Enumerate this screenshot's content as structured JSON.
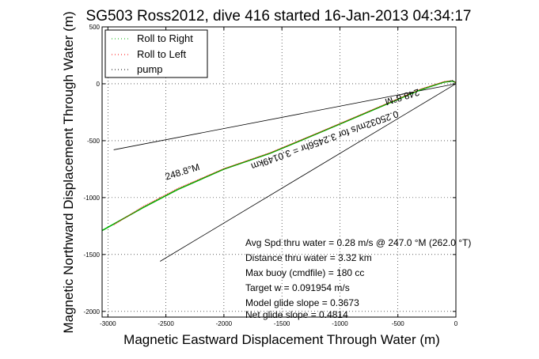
{
  "chart_data": {
    "type": "line",
    "title": "SG503 Ross2012, dive 416 started 16-Jan-2013 04:34:17",
    "xlabel": "Magnetic Eastward Displacement Through Water (m)",
    "ylabel": "Magnetic Northward Displacement Through Water (m)",
    "xlim": [
      -3050,
      0
    ],
    "ylim": [
      -2050,
      500
    ],
    "xticks": [
      -3000,
      -2500,
      -2000,
      -1500,
      -1000,
      -500,
      0
    ],
    "yticks": [
      500,
      0,
      -500,
      -1000,
      -1500,
      -2000
    ],
    "grid": true,
    "legend_position": "top-left",
    "legend": [
      {
        "label": "Roll to Right",
        "color": "#00b000"
      },
      {
        "label": "Roll to Left",
        "color": "#ff0000"
      },
      {
        "label": "pump",
        "color": "#000000"
      }
    ],
    "series": [
      {
        "name": "Roll to Right",
        "color": "#00b000",
        "x": [
          -3050,
          -2700,
          -2400,
          -2000,
          -1600,
          -1200,
          -900,
          -600,
          -300,
          -100,
          -30,
          0
        ],
        "y": [
          -1290,
          -1090,
          -930,
          -750,
          -610,
          -440,
          -310,
          -180,
          -50,
          15,
          25,
          10
        ]
      },
      {
        "name": "Roll to Left",
        "color": "#ff0000",
        "x": [
          -2950,
          -2700,
          -2400,
          -2000,
          -1600,
          -1200,
          -900,
          -600,
          -300,
          -100,
          -30,
          0
        ],
        "y": [
          -1240,
          -1080,
          -920,
          -745,
          -605,
          -435,
          -305,
          -175,
          -45,
          20,
          28,
          10
        ]
      },
      {
        "name": "pump",
        "color": "#000000",
        "x": [
          -60,
          -30,
          -10
        ],
        "y": [
          20,
          28,
          15
        ]
      }
    ],
    "reference_lines": [
      {
        "x": [
          0,
          -2950
        ],
        "y": [
          0,
          -580
        ]
      },
      {
        "x": [
          0,
          -2550
        ],
        "y": [
          0,
          -1560
        ]
      }
    ],
    "rotated_labels": [
      {
        "text": "248.8°M",
        "x": -2350,
        "y": -800,
        "angle": -17
      },
      {
        "text": "248.8°M",
        "x": -470,
        "y": -90,
        "angle": 163
      },
      {
        "text": "0.25032m/s for 3.2456hr = 3.0149km",
        "x": -1140,
        "y": -470,
        "angle": 160
      }
    ],
    "annotations": [
      "Avg Spd thru water =  0.28 m/s @ 247.0    °M (262.0 °T)",
      "Distance thru water =  3.32 km",
      "Max buoy (cmdfile) = 180 cc",
      "Target w = 0.091954 m/s",
      "Model glide slope = 0.3673",
      "Net glide slope = 0.4814"
    ]
  }
}
